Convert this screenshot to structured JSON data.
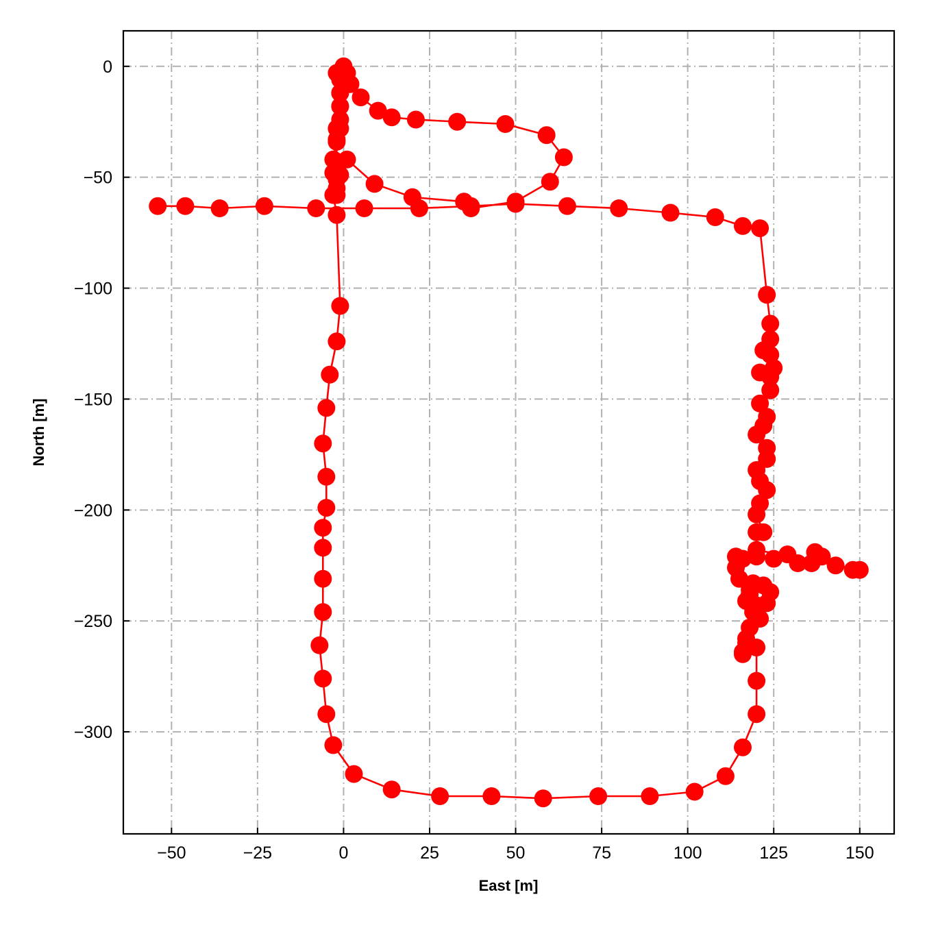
{
  "chart_data": {
    "type": "line",
    "title": "",
    "xlabel": "East [m]",
    "ylabel": "North [m]",
    "xlim": [
      -64,
      160
    ],
    "ylim": [
      -346,
      16
    ],
    "xticks": [
      -50,
      -25,
      0,
      25,
      50,
      75,
      100,
      125,
      150
    ],
    "yticks": [
      0,
      -50,
      -100,
      -150,
      -200,
      -250,
      -300
    ],
    "xtick_labels": [
      "−50",
      "−25",
      "0",
      "25",
      "50",
      "75",
      "100",
      "125",
      "150"
    ],
    "ytick_labels": [
      "0",
      "−50",
      "−100",
      "−150",
      "−200",
      "−250",
      "−300"
    ],
    "grid": true,
    "legend": "none",
    "series": [
      {
        "color": "#ff0000",
        "marker": "circle",
        "points": [
          [
            0,
            0
          ],
          [
            1,
            -3
          ],
          [
            2,
            -8
          ],
          [
            5,
            -14
          ],
          [
            10,
            -20
          ],
          [
            14,
            -23
          ],
          [
            21,
            -24
          ],
          [
            33,
            -25
          ],
          [
            47,
            -26
          ],
          [
            59,
            -31
          ],
          [
            64,
            -41
          ],
          [
            60,
            -52
          ],
          [
            50,
            -61
          ],
          [
            37,
            -64
          ],
          [
            35,
            -61
          ],
          [
            20,
            -59
          ],
          [
            9,
            -53
          ],
          [
            1,
            -42
          ],
          [
            -1,
            -49
          ],
          [
            -2,
            -55
          ],
          [
            -2,
            -58
          ],
          [
            -2,
            -51
          ],
          [
            -2,
            -43
          ],
          [
            -2,
            -34
          ],
          [
            -1,
            -28
          ],
          [
            -1,
            -24
          ],
          [
            -1,
            -18
          ],
          [
            -1,
            -12
          ],
          [
            -1,
            -6
          ],
          [
            0,
            -2
          ],
          [
            -2,
            -3
          ],
          [
            -1,
            -12
          ],
          [
            -1,
            -18
          ],
          [
            -2,
            -28
          ],
          [
            -2,
            -33
          ],
          [
            -3,
            -42
          ],
          [
            -3,
            -48
          ],
          [
            -3,
            -58
          ],
          [
            -2,
            -67
          ],
          [
            -1,
            -108
          ],
          [
            -2,
            -124
          ],
          [
            -4,
            -139
          ],
          [
            -5,
            -154
          ],
          [
            -6,
            -170
          ],
          [
            -5,
            -185
          ],
          [
            -5,
            -199
          ],
          [
            -6,
            -208
          ],
          [
            -6,
            -217
          ],
          [
            -6,
            -231
          ],
          [
            -6,
            -246
          ],
          [
            -7,
            -261
          ],
          [
            -6,
            -276
          ],
          [
            -5,
            -292
          ],
          [
            -3,
            -306
          ],
          [
            3,
            -319
          ],
          [
            14,
            -326
          ],
          [
            28,
            -329
          ],
          [
            43,
            -329
          ],
          [
            58,
            -330
          ],
          [
            74,
            -329
          ],
          [
            89,
            -329
          ],
          [
            102,
            -327
          ],
          [
            111,
            -320
          ],
          [
            116,
            -307
          ],
          [
            120,
            -292
          ],
          [
            120,
            -277
          ],
          [
            120,
            -262
          ],
          [
            117,
            -258
          ],
          [
            116,
            -264
          ],
          [
            116,
            -265
          ],
          [
            117,
            -260
          ],
          [
            118,
            -253
          ],
          [
            119,
            -246
          ],
          [
            118,
            -238
          ],
          [
            119,
            -233
          ],
          [
            120,
            -243
          ],
          [
            121,
            -249
          ],
          [
            123,
            -242
          ],
          [
            124,
            -237
          ],
          [
            122,
            -234
          ],
          [
            118,
            -236
          ],
          [
            117,
            -241
          ],
          [
            115,
            -231
          ],
          [
            114,
            -226
          ],
          [
            114,
            -221
          ],
          [
            116,
            -222
          ],
          [
            120,
            -221
          ],
          [
            125,
            -222
          ],
          [
            129,
            -220
          ],
          [
            132,
            -224
          ],
          [
            136,
            -224
          ],
          [
            137,
            -219
          ],
          [
            139,
            -221
          ],
          [
            143,
            -225
          ],
          [
            148,
            -227
          ],
          [
            150,
            -227
          ],
          [
            120,
            -218
          ],
          [
            120,
            -210
          ],
          [
            122,
            -210
          ],
          [
            120,
            -202
          ],
          [
            121,
            -197
          ],
          [
            123,
            -191
          ],
          [
            121,
            -187
          ],
          [
            120,
            -182
          ],
          [
            123,
            -177
          ],
          [
            123,
            -172
          ],
          [
            120,
            -166
          ],
          [
            122,
            -162
          ],
          [
            123,
            -158
          ],
          [
            121,
            -152
          ],
          [
            124,
            -146
          ],
          [
            124,
            -140
          ],
          [
            121,
            -138
          ],
          [
            125,
            -136
          ],
          [
            124,
            -130
          ],
          [
            122,
            -128
          ],
          [
            124,
            -123
          ],
          [
            124,
            -116
          ],
          [
            123,
            -103
          ],
          [
            121,
            -73
          ],
          [
            116,
            -72
          ],
          [
            108,
            -68
          ],
          [
            95,
            -66
          ],
          [
            80,
            -64
          ],
          [
            65,
            -63
          ],
          [
            50,
            -62
          ],
          [
            37,
            -63
          ],
          [
            22,
            -64
          ],
          [
            6,
            -64
          ],
          [
            -8,
            -64
          ],
          [
            -23,
            -63
          ],
          [
            -36,
            -64
          ],
          [
            -46,
            -63
          ],
          [
            -54,
            -63
          ]
        ]
      }
    ]
  }
}
